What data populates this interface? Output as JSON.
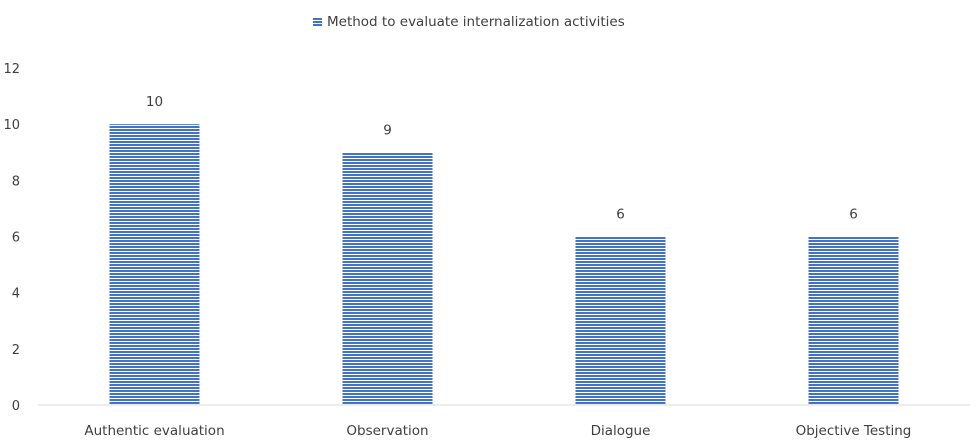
{
  "chart_data": {
    "type": "bar",
    "categories": [
      "Authentic evaluation",
      "Observation",
      "Dialogue",
      "Objective Testing"
    ],
    "series": [
      {
        "name": "Method to evaluate internalization activities",
        "values": [
          10,
          9,
          6,
          6
        ]
      }
    ],
    "data_labels": [
      "10",
      "9",
      "6",
      "6"
    ],
    "y_ticks": [
      "0",
      "2",
      "4",
      "6",
      "8",
      "10",
      "12"
    ],
    "ylim": [
      0,
      12
    ],
    "title": "",
    "xlabel": "",
    "ylabel": "",
    "legend_position": "top",
    "grid": false,
    "bar_color": "#4472C4",
    "bar_pattern": "horizontal-stripes"
  }
}
